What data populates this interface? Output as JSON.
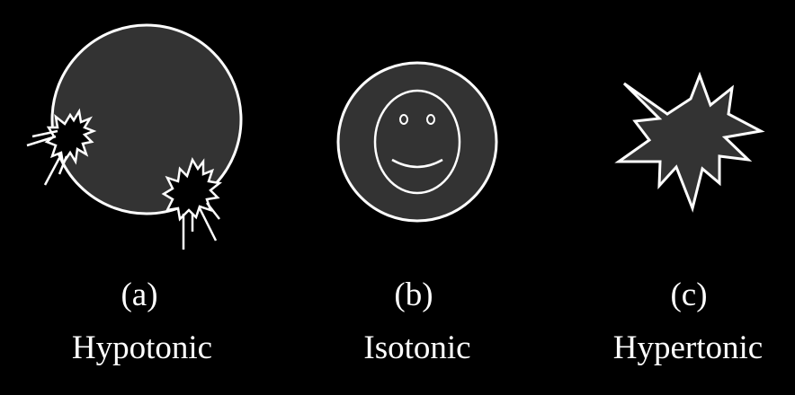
{
  "panels": [
    {
      "letter": "(a)",
      "name": "Hypotonic"
    },
    {
      "letter": "(b)",
      "name": "Isotonic"
    },
    {
      "letter": "(c)",
      "name": "Hypertonic"
    }
  ],
  "colors": {
    "background": "#000000",
    "cell_fill": "#333333",
    "outline": "#ffffff",
    "text": "#ffffff"
  },
  "icons": [
    "bursting-cell-icon",
    "smiley-cell-icon",
    "shriveled-cell-icon"
  ]
}
